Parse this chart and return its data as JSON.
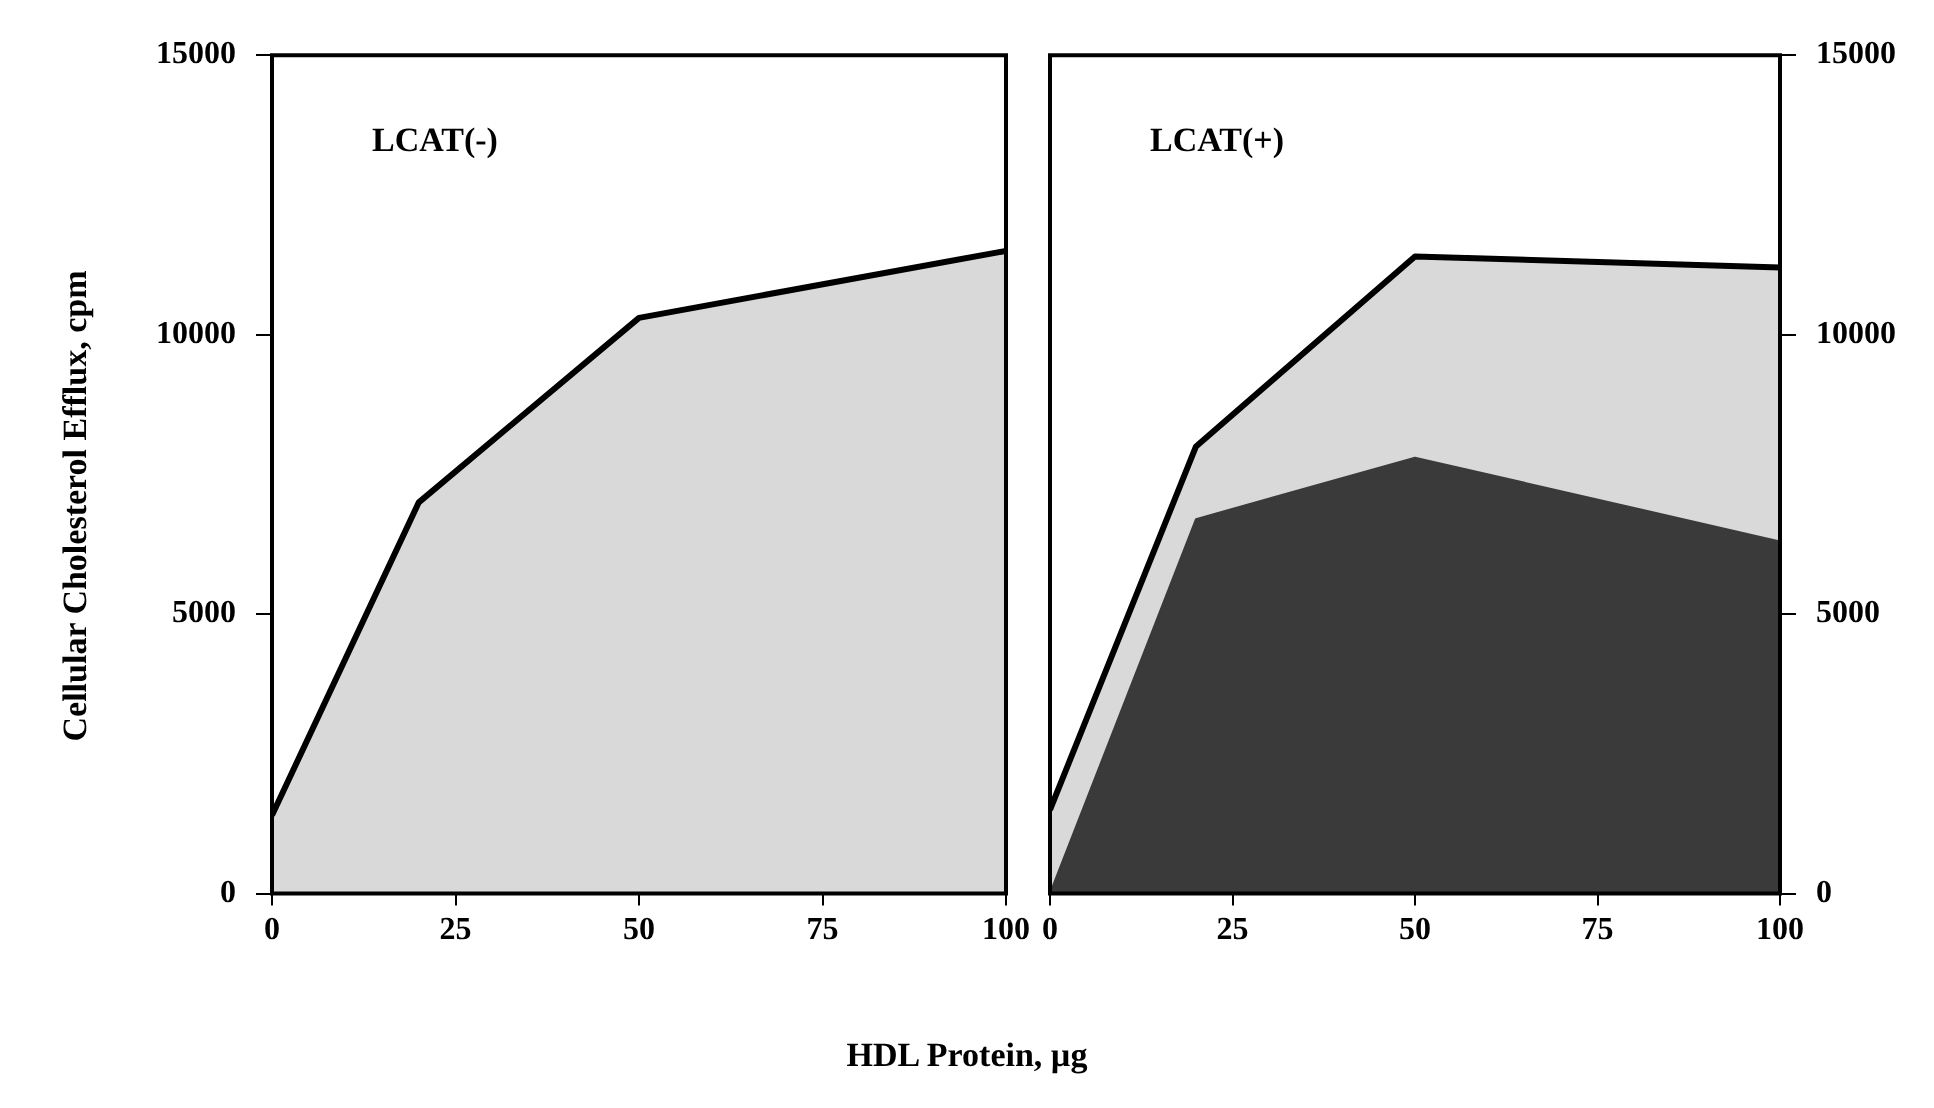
{
  "chart_data": [
    {
      "type": "area",
      "annotations": [
        "LCAT(-)"
      ],
      "xlabel": "HDL Protein, µg",
      "ylabel": "Cellular Cholesterol Efflux, cpm",
      "x": [
        0,
        20,
        50,
        100
      ],
      "series": [
        {
          "color": "#d9d9d9",
          "values": [
            1400,
            7000,
            10300,
            11500
          ]
        }
      ],
      "xlim": [
        0,
        100
      ],
      "xticks": [
        0,
        25,
        50,
        75,
        100
      ],
      "ylim": [
        0,
        15000
      ],
      "yticks": [
        0,
        5000,
        10000,
        15000
      ],
      "grid": false,
      "legend": false
    },
    {
      "type": "area",
      "annotations": [
        "LCAT(+)"
      ],
      "x": [
        0,
        20,
        50,
        100
      ],
      "series": [
        {
          "color": "#d9d9d9",
          "values": [
            1500,
            8000,
            11400,
            11200
          ]
        },
        {
          "color": "#3a3a3a",
          "values": [
            0,
            6700,
            7800,
            6300
          ]
        }
      ],
      "xlim": [
        0,
        100
      ],
      "xticks": [
        0,
        25,
        50,
        75,
        100
      ],
      "ylim": [
        0,
        15000
      ],
      "yticks": [
        0,
        5000,
        10000,
        15000
      ],
      "grid": false,
      "legend": false
    }
  ]
}
